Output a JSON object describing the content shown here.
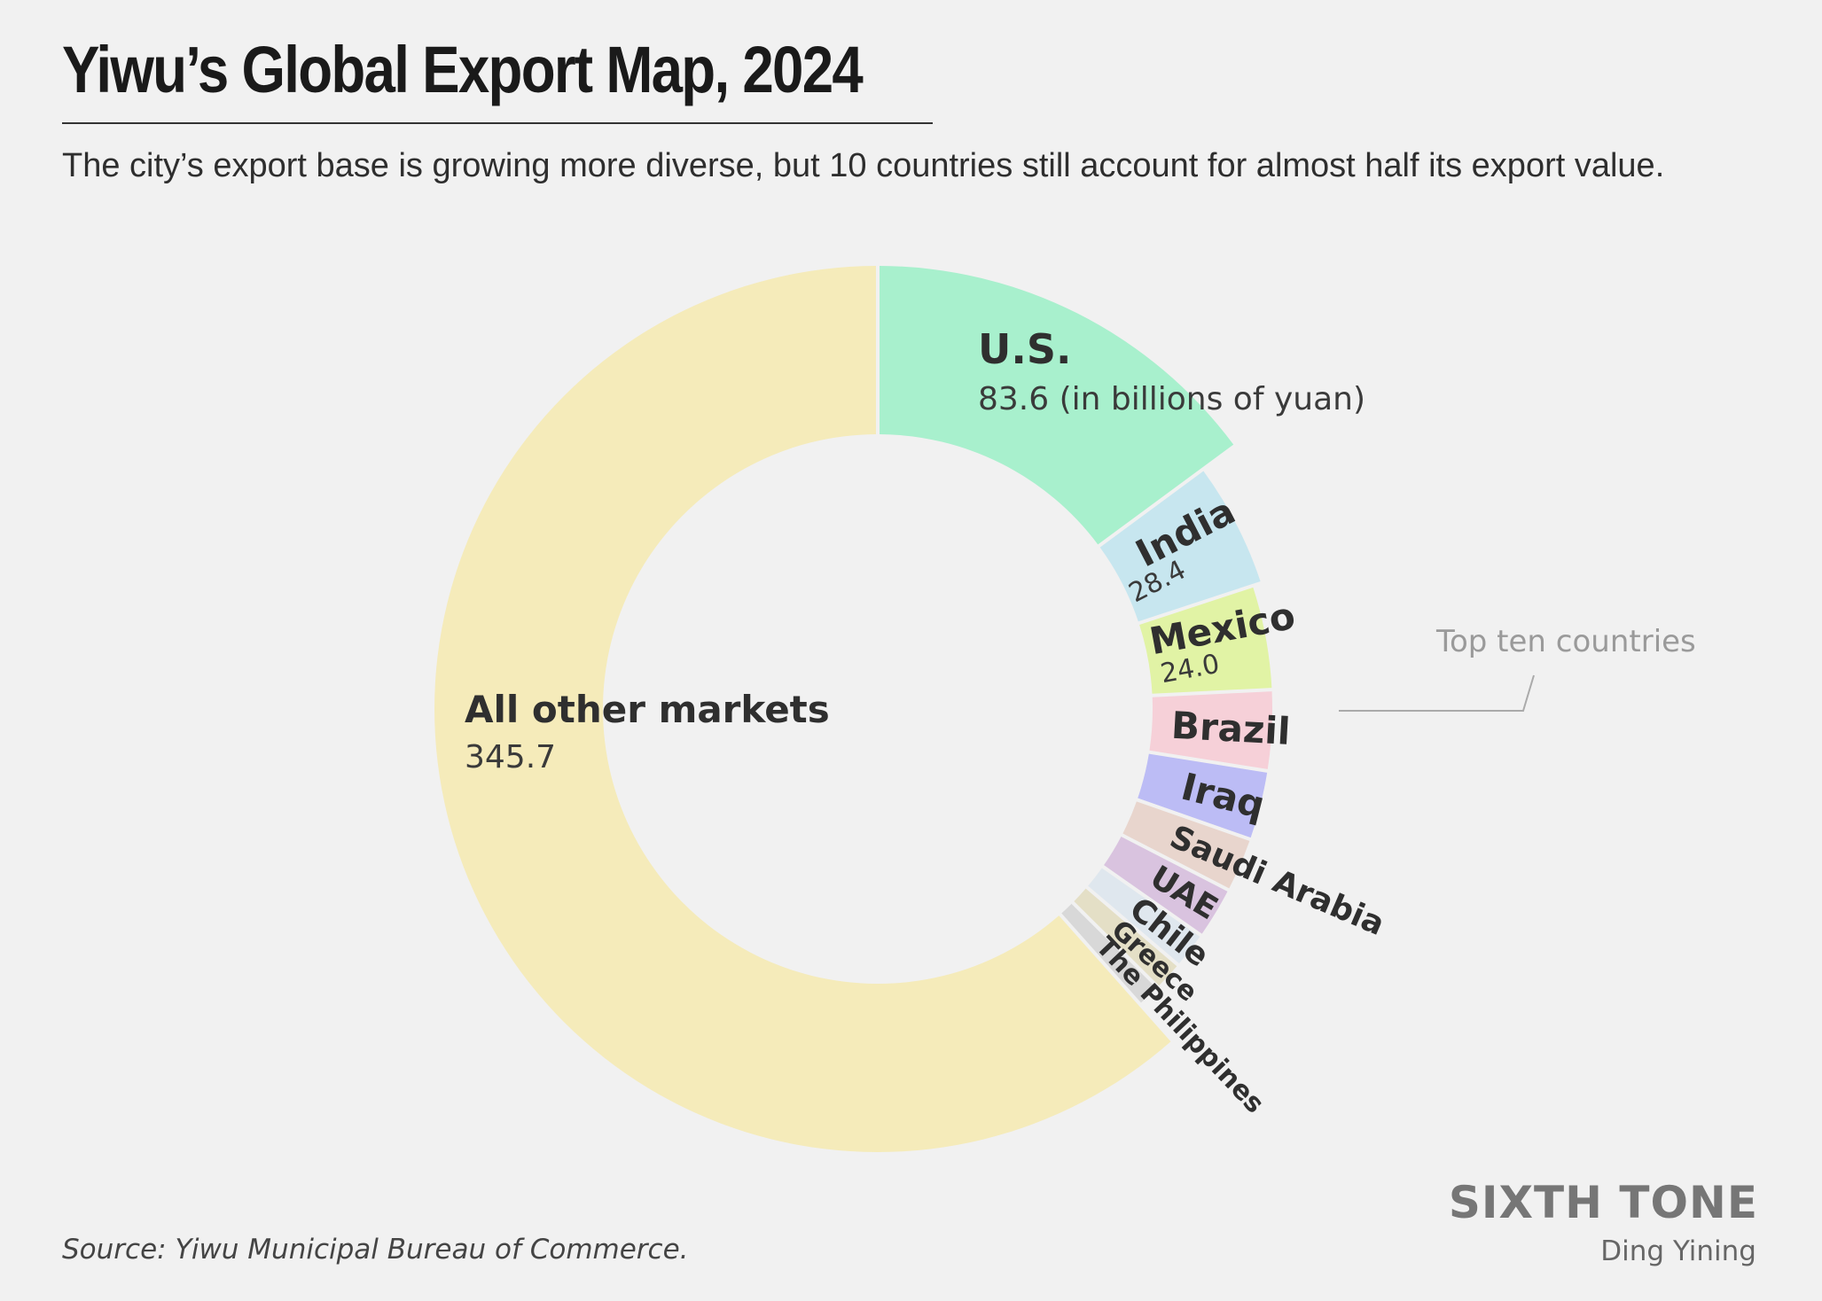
{
  "header": {
    "title": "Yiwu’s Global Export Map, 2024",
    "subtitle": "The city’s export base is growing more diverse, but 10 countries still account for almost half its export value."
  },
  "chart_data": {
    "type": "pie",
    "unit_note": "(in billions of yuan)",
    "annotation": "Top ten countries",
    "slices": [
      {
        "label": "U.S.",
        "value": 83.6,
        "value_label": "83.6",
        "color": "#a8f0cd"
      },
      {
        "label": "India",
        "value": 28.4,
        "value_label": "28.4",
        "color": "#c7e6ef"
      },
      {
        "label": "Mexico",
        "value": 24.0,
        "value_label": "24.0",
        "color": "#e1f3a5"
      },
      {
        "label": "Brazil",
        "value": 18.5,
        "value_label": "",
        "color": "#f6d0d8"
      },
      {
        "label": "Iraq",
        "value": 16.0,
        "value_label": "",
        "color": "#bcbcf5"
      },
      {
        "label": "Saudi Arabia",
        "value": 12.5,
        "value_label": "",
        "color": "#e8d5cd"
      },
      {
        "label": "UAE",
        "value": 12.0,
        "value_label": "",
        "color": "#d9c3df"
      },
      {
        "label": "Chile",
        "value": 8.5,
        "value_label": "",
        "color": "#dfe7ee"
      },
      {
        "label": "Greece",
        "value": 6.8,
        "value_label": "",
        "color": "#e4dfc6"
      },
      {
        "label": "The Philippines",
        "value": 5.6,
        "value_label": "",
        "color": "#d8d8d8"
      },
      {
        "label": "All other markets",
        "value": 345.7,
        "value_label": "345.7",
        "color": "#f5ebba"
      }
    ]
  },
  "footer": {
    "source": "Source: Yiwu Municipal Bureau of Commerce.",
    "brand": "SIXTH TONE",
    "author": "Ding Yining"
  }
}
